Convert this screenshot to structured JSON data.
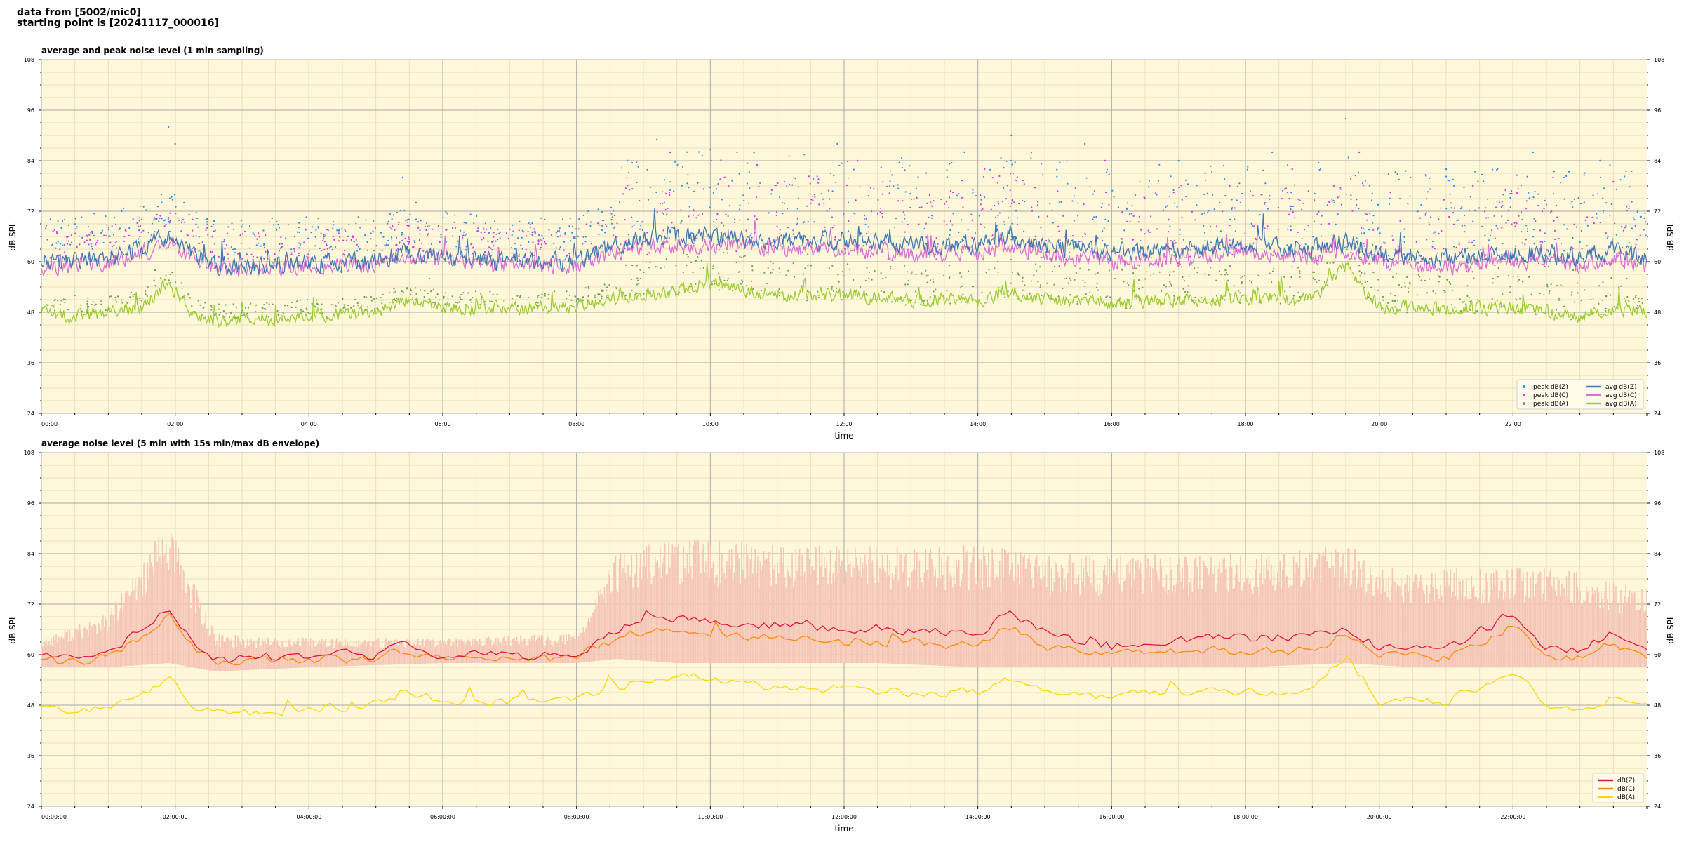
{
  "header": {
    "line1": "data from [5002/mic0]",
    "line2": "starting point is [20241117_000016]"
  },
  "colors": {
    "plot_background": "#fff7d9",
    "grid_major": "#a9a9a9",
    "grid_minor": "#e9dfb9",
    "peak_z": "#2b8fe6",
    "peak_c": "#e033e0",
    "peak_a": "#6aa34f",
    "avg_z": "#3f77b2",
    "avg_c": "#da70d6",
    "avg_a": "#9acd32",
    "env_z": "#e0143c",
    "env_c": "#ff8c00",
    "env_a": "#ffd700",
    "envelope_fill": "#f5c6b8"
  },
  "chart_data": [
    {
      "type": "line",
      "title": "average and peak noise level (1 min sampling)",
      "xlabel": "time",
      "ylabel": "dB SPL",
      "ylim": [
        24,
        108
      ],
      "xlim": [
        0,
        24
      ],
      "yticks": [
        "24",
        "36",
        "48",
        "60",
        "72",
        "84",
        "96",
        "108"
      ],
      "xticks": [
        "00:00",
        "02:00",
        "04:00",
        "06:00",
        "08:00",
        "10:00",
        "12:00",
        "14:00",
        "16:00",
        "18:00",
        "20:00",
        "22:00"
      ],
      "grid": true,
      "legend_position": "bottom-right",
      "legend": [
        "peak dB(Z)",
        "peak dB(C)",
        "peak dB(A)",
        "avg dB(Z)",
        "avg dB(C)",
        "avg dB(A)"
      ],
      "series": [
        {
          "name": "avg dB(Z)",
          "x": [
            0,
            0.5,
            1,
            1.5,
            1.9,
            2.3,
            2.6,
            3,
            4,
            5,
            5.4,
            6,
            7,
            8,
            8.1,
            8.8,
            9.5,
            10,
            11,
            12,
            13,
            14,
            14.5,
            15,
            16,
            17,
            18,
            19,
            19.5,
            20,
            21,
            22,
            22.5,
            23,
            23.5,
            24
          ],
          "values": [
            60,
            60,
            61,
            63,
            66,
            62,
            59,
            59,
            60,
            60,
            62,
            61,
            60,
            60,
            61,
            65,
            66,
            66,
            65,
            65,
            64,
            64,
            66,
            64,
            62,
            63,
            64,
            63,
            65,
            62,
            61,
            62,
            62,
            61,
            63,
            61
          ]
        },
        {
          "name": "avg dB(C)",
          "x": [
            0,
            0.5,
            1,
            1.5,
            1.9,
            2.3,
            2.6,
            3,
            4,
            5,
            5.4,
            6,
            7,
            8,
            8.1,
            8.8,
            9.5,
            10,
            11,
            12,
            13,
            14,
            14.5,
            15,
            16,
            17,
            18,
            19,
            19.5,
            20,
            21,
            22,
            22.5,
            23,
            23.5,
            24
          ],
          "values": [
            59,
            59,
            60,
            62,
            64,
            61,
            58,
            58,
            59,
            59,
            61,
            60,
            59,
            59,
            60,
            63,
            64,
            64,
            63,
            63,
            62,
            62,
            64,
            62,
            60,
            61,
            62,
            61,
            63,
            60,
            59,
            60,
            60,
            59,
            61,
            59
          ]
        },
        {
          "name": "avg dB(A)",
          "x": [
            0,
            0.5,
            1,
            1.5,
            1.9,
            2.3,
            2.6,
            3,
            4,
            5,
            5.4,
            6,
            7,
            8,
            8.1,
            8.8,
            9.5,
            10,
            11,
            12,
            13,
            14,
            14.5,
            15,
            16,
            17,
            18,
            19,
            19.5,
            20,
            21,
            22,
            22.5,
            23,
            23.5,
            24
          ],
          "values": [
            48,
            47,
            48,
            49,
            55,
            47,
            46,
            46,
            47,
            48,
            51,
            49,
            49,
            49,
            50,
            52,
            53,
            55,
            52,
            52,
            51,
            51,
            53,
            51,
            50,
            51,
            51,
            51,
            59,
            49,
            49,
            49,
            48,
            47,
            49,
            48
          ]
        },
        {
          "name": "peak dB(Z)",
          "x": [
            0.3,
            1.2,
            1.9,
            5.4,
            9.2,
            10.4,
            11.9,
            13.8,
            14.5,
            15.6,
            17.0,
            18.4,
            19.5,
            21.0,
            22.3,
            23.3
          ],
          "values": [
            68,
            72,
            92,
            80,
            89,
            86,
            88,
            86,
            90,
            88,
            84,
            86,
            94,
            82,
            86,
            84
          ]
        },
        {
          "name": "peak dB(C)",
          "x": [
            0.4,
            1.5,
            2.0,
            5.6,
            9.4,
            10.7,
            12.2,
            14.1,
            14.8,
            15.9,
            17.4,
            18.7,
            19.7,
            21.4,
            22.6,
            23.5
          ],
          "values": [
            66,
            70,
            88,
            74,
            86,
            83,
            84,
            82,
            86,
            84,
            81,
            82,
            86,
            78,
            80,
            79
          ]
        },
        {
          "name": "peak dB(A)",
          "x": [
            0.5,
            1.7,
            2.2,
            5.8,
            9.6,
            10.9,
            12.5,
            14.3,
            15.0,
            16.2,
            17.7,
            19.0,
            19.9,
            21.7,
            22.9,
            23.7
          ],
          "values": [
            52,
            58,
            62,
            56,
            62,
            60,
            62,
            60,
            64,
            60,
            58,
            60,
            64,
            56,
            58,
            56
          ]
        }
      ]
    },
    {
      "type": "area",
      "title": "average noise level (5 min with 15s min/max dB envelope)",
      "xlabel": "time",
      "ylabel": "dB SPL",
      "ylim": [
        24,
        108
      ],
      "xlim": [
        0,
        24
      ],
      "yticks": [
        "24",
        "36",
        "48",
        "60",
        "72",
        "84",
        "96",
        "108"
      ],
      "xticks": [
        "00:00:00",
        "02:00:00",
        "04:00:00",
        "06:00:00",
        "08:00:00",
        "10:00:00",
        "12:00:00",
        "14:00:00",
        "16:00:00",
        "18:00:00",
        "20:00:00",
        "22:00:00"
      ],
      "grid": true,
      "legend_position": "bottom-right",
      "legend": [
        "dB(Z)",
        "dB(C)",
        "dB(A)"
      ],
      "envelope": {
        "x": [
          0,
          1,
          1.9,
          2.6,
          4,
          6,
          8,
          8.6,
          9.5,
          11,
          12.5,
          14,
          15,
          16.5,
          18,
          19.5,
          20.5,
          22,
          23,
          24
        ],
        "min": [
          57,
          57,
          58,
          56,
          57,
          58,
          58,
          59,
          58,
          58,
          58,
          57,
          57,
          57,
          57,
          58,
          57,
          57,
          57,
          57
        ],
        "max": [
          64,
          70,
          92,
          65,
          64,
          64,
          65,
          84,
          88,
          86,
          86,
          86,
          84,
          84,
          84,
          86,
          80,
          82,
          80,
          76
        ]
      },
      "series": [
        {
          "name": "dB(Z)",
          "x": [
            0,
            0.5,
            1,
            1.5,
            1.9,
            2.3,
            2.6,
            3,
            4,
            5,
            5.4,
            6,
            7,
            8,
            8.1,
            8.8,
            9.5,
            10,
            11,
            12,
            13,
            14,
            14.5,
            15,
            16,
            17,
            18,
            19,
            19.5,
            20,
            21,
            22,
            22.5,
            23,
            23.5,
            24
          ],
          "values": [
            60,
            59,
            61,
            66,
            72,
            62,
            59,
            59,
            60,
            60,
            63,
            60,
            60,
            60,
            61,
            67,
            69,
            68,
            67,
            66,
            66,
            65,
            70,
            65,
            62,
            64,
            64,
            64,
            67,
            62,
            61,
            70,
            62,
            61,
            66,
            61
          ]
        },
        {
          "name": "dB(C)",
          "x": [
            0,
            0.5,
            1,
            1.5,
            1.9,
            2.3,
            2.6,
            3,
            4,
            5,
            5.4,
            6,
            7,
            8,
            8.1,
            8.8,
            9.5,
            10,
            11,
            12,
            13,
            14,
            14.5,
            15,
            16,
            17,
            18,
            19,
            19.5,
            20,
            21,
            22,
            22.5,
            23,
            23.5,
            24
          ],
          "values": [
            59,
            58,
            60,
            64,
            70,
            61,
            58,
            58,
            59,
            59,
            61,
            59,
            59,
            59,
            60,
            65,
            66,
            65,
            64,
            63,
            63,
            62,
            67,
            62,
            60,
            61,
            61,
            61,
            64,
            60,
            59,
            67,
            60,
            59,
            63,
            59
          ]
        },
        {
          "name": "dB(A)",
          "x": [
            0,
            0.5,
            1,
            1.5,
            1.9,
            2.3,
            2.6,
            3,
            4,
            5,
            5.4,
            6,
            7,
            8,
            8.1,
            8.8,
            9.5,
            10,
            11,
            12,
            13,
            14,
            14.5,
            15,
            16,
            17,
            18,
            19,
            19.5,
            20,
            21,
            22,
            22.5,
            23,
            23.5,
            24
          ],
          "values": [
            48,
            47,
            48,
            50,
            55,
            47,
            46,
            46,
            47,
            48,
            51,
            49,
            49,
            49,
            50,
            53,
            55,
            54,
            52,
            52,
            51,
            51,
            54,
            51,
            50,
            51,
            51,
            51,
            60,
            49,
            49,
            56,
            48,
            47,
            50,
            48
          ]
        }
      ]
    }
  ]
}
